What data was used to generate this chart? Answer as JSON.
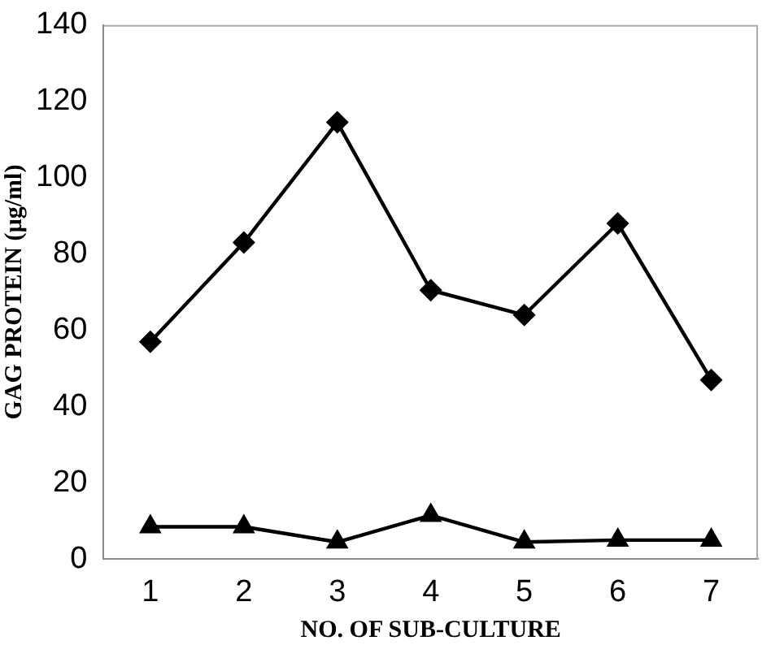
{
  "chart_data": {
    "type": "line",
    "xlabel": "NO. OF SUB-CULTURE",
    "ylabel": "GAG PROTEIN (µg/ml)",
    "categories": [
      "1",
      "2",
      "3",
      "4",
      "5",
      "6",
      "7"
    ],
    "series": [
      {
        "color": "#000000",
        "marker": "diamond",
        "values": [
          57,
          83,
          114.5,
          70.5,
          64,
          88,
          47
        ]
      },
      {
        "color": "#000000",
        "marker": "triangle",
        "values": [
          8.5,
          8.5,
          4.5,
          11.5,
          4.5,
          5,
          5
        ]
      }
    ],
    "ylim": [
      0,
      140
    ],
    "yticks": [
      0,
      20,
      40,
      60,
      80,
      100,
      120,
      140
    ],
    "grid": false,
    "legend": false,
    "line_style": "solid"
  }
}
